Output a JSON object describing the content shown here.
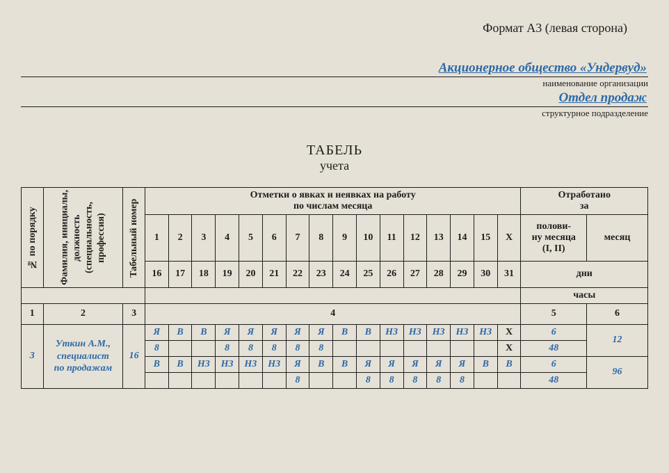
{
  "format_note": "Формат А3 (левая сторона)",
  "org": {
    "value": "Акционерное общество «Ундервуд»",
    "caption": "наименование организации"
  },
  "dept": {
    "value": "Отдел продаж",
    "caption": "структурное подразделение"
  },
  "title": {
    "main": "ТАБЕЛЬ",
    "sub": "учета"
  },
  "headers": {
    "col1": "№ по порядку",
    "col2": "Фамилия, инициалы,\nдолжность\n(специальность,\nпрофессия)",
    "col3": "Табельный номер",
    "marks_group": "Отметки о явках и неявках на работу\nпо числам месяца",
    "worked_group": "Отработано\nза",
    "half_month": "полови-\nну месяца\n(I, II)",
    "month": "месяц",
    "days": "дни",
    "hours": "часы"
  },
  "first_half": [
    "1",
    "2",
    "3",
    "4",
    "5",
    "6",
    "7",
    "8",
    "9",
    "10",
    "11",
    "12",
    "13",
    "14",
    "15",
    "X"
  ],
  "second_half": [
    "16",
    "17",
    "18",
    "19",
    "20",
    "21",
    "22",
    "23",
    "24",
    "25",
    "26",
    "27",
    "28",
    "29",
    "30",
    "31"
  ],
  "col_nums": {
    "c1": "1",
    "c2": "2",
    "c3": "3",
    "c4": "4",
    "c5": "5",
    "c6": "6"
  },
  "row": {
    "num": "3",
    "name": "Уткин А.М.,\nспециалист\nпо продажам",
    "tab": "16",
    "r1": [
      "Я",
      "В",
      "В",
      "Я",
      "Я",
      "Я",
      "Я",
      "Я",
      "В",
      "В",
      "НЗ",
      "НЗ",
      "НЗ",
      "НЗ",
      "НЗ",
      "X"
    ],
    "r1_half": "6",
    "r1_month": "12",
    "r2": [
      "8",
      "",
      "",
      "8",
      "8",
      "8",
      "8",
      "8",
      "",
      "",
      "",
      "",
      "",
      "",
      "",
      "X"
    ],
    "r2_half": "48",
    "r3": [
      "В",
      "В",
      "НЗ",
      "НЗ",
      "НЗ",
      "НЗ",
      "Я",
      "В",
      "В",
      "Я",
      "Я",
      "Я",
      "Я",
      "Я",
      "В",
      "В"
    ],
    "r3_half": "6",
    "r3_month": "96",
    "r4": [
      "",
      "",
      "",
      "",
      "",
      "",
      "8",
      "",
      "",
      "8",
      "8",
      "8",
      "8",
      "8",
      "",
      ""
    ],
    "r4_half": "48"
  },
  "colors": {
    "entry": "#2b6aa8",
    "bg": "#e6e1d6",
    "border": "#1d1d1d"
  }
}
